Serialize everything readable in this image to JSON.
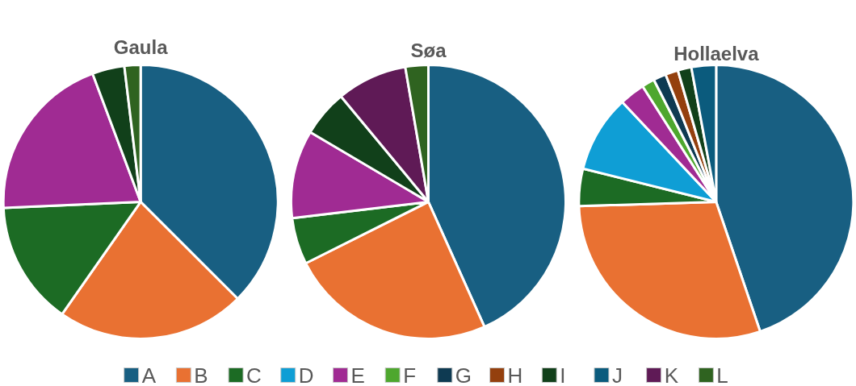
{
  "chart_data": {
    "type": "pie",
    "legend": "bottom",
    "categories": [
      "A",
      "B",
      "C",
      "D",
      "E",
      "F",
      "G",
      "H",
      "I",
      "J",
      "K",
      "L"
    ],
    "colors": [
      "#185f82",
      "#e97132",
      "#1c6b24",
      "#0f9ed5",
      "#a02b93",
      "#4ea72e",
      "#0e3a52",
      "#94400e",
      "#11401a",
      "#0b5b7d",
      "#5f1a56",
      "#2f6320"
    ],
    "series": [
      {
        "name": "Gaula",
        "values": [
          37.5,
          22.2,
          14.6,
          0,
          20.0,
          0,
          0,
          0,
          3.8,
          0,
          0,
          1.9
        ]
      },
      {
        "name": "Søa",
        "values": [
          43.3,
          24.3,
          5.5,
          0,
          10.4,
          0,
          0,
          0,
          5.5,
          0,
          8.3,
          2.7
        ]
      },
      {
        "name": "Hollaelva",
        "values": [
          44.8,
          29.7,
          4.4,
          9.1,
          3.0,
          1.5,
          1.5,
          1.5,
          1.6,
          2.9,
          0,
          0
        ]
      }
    ]
  }
}
